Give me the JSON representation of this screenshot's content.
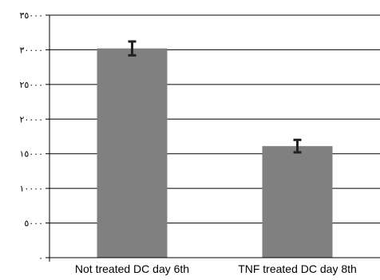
{
  "chart_data": {
    "type": "bar",
    "title": "",
    "xlabel": "",
    "ylabel": "",
    "categories": [
      "Not treated DC day 6th",
      "TNF treated DC day 8th"
    ],
    "values": [
      30200,
      16100
    ],
    "error": [
      1000,
      900
    ],
    "ylim": [
      0,
      35000
    ],
    "yticks": [
      0,
      5000,
      10000,
      15000,
      20000,
      25000,
      30000,
      35000
    ],
    "ytick_labels": [
      "٠",
      "٥٠٠٠",
      "١٠٠٠٠",
      "١٥٠٠٠",
      "٢٠٠٠٠",
      "٢٥٠٠٠",
      "٣٠٠٠٠",
      "٣٥٠٠٠"
    ],
    "grid": true,
    "legend": "none",
    "bar_color": "#808080",
    "error_color": "#222222"
  }
}
